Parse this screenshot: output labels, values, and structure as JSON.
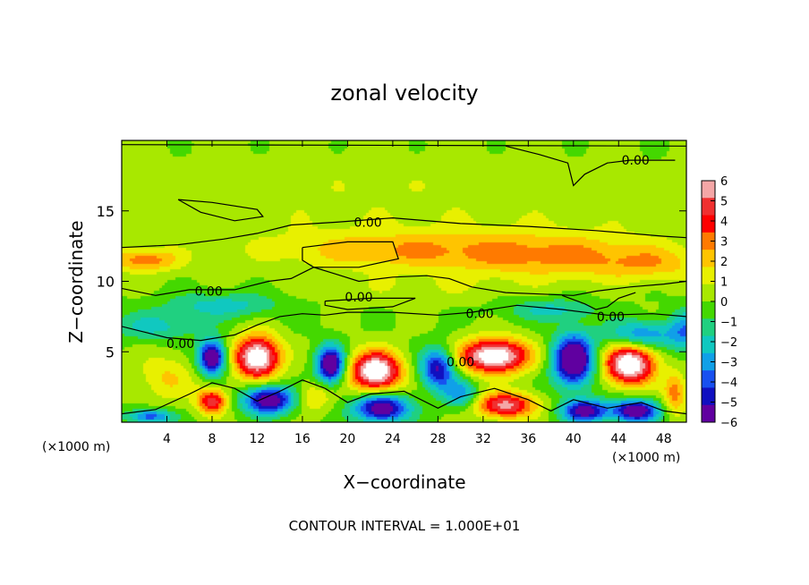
{
  "chart_data": {
    "type": "heatmap",
    "title": "zonal velocity",
    "xlabel": "X−coordinate",
    "ylabel": "Z−coordinate",
    "x_unit_left": "(×1000 m)",
    "x_unit_right": "(×1000 m)",
    "footer": "CONTOUR INTERVAL = 1.000E+01",
    "xlim": [
      0,
      50
    ],
    "ylim": [
      0,
      20
    ],
    "x_ticks": [
      4,
      8,
      12,
      16,
      20,
      24,
      28,
      32,
      36,
      40,
      44,
      48
    ],
    "y_ticks": [
      5,
      10,
      15
    ],
    "colorbar": {
      "ticks": [
        "6",
        "5",
        "4",
        "3",
        "2",
        "1",
        "0",
        "−1",
        "−2",
        "−3",
        "−4",
        "−5",
        "−6"
      ],
      "range": [
        -6,
        6
      ],
      "colors": [
        "#f4a6a6",
        "#f03030",
        "#ff0000",
        "#ff7a00",
        "#ffc400",
        "#e8f000",
        "#a8e800",
        "#44d800",
        "#20d080",
        "#10c8c0",
        "#10a0e8",
        "#1850f0",
        "#1010c0",
        "#6000a0"
      ]
    },
    "contour_labels": [
      {
        "text": "0.00",
        "x": 45.5,
        "z": 18.6
      },
      {
        "text": "0.00",
        "x": 21.8,
        "z": 14.2
      },
      {
        "text": "0.00",
        "x": 7.7,
        "z": 9.3
      },
      {
        "text": "0.00",
        "x": 21.0,
        "z": 8.9
      },
      {
        "text": "0.00",
        "x": 31.7,
        "z": 7.7
      },
      {
        "text": "0.00",
        "x": 43.3,
        "z": 7.5
      },
      {
        "text": "0.00",
        "x": 5.2,
        "z": 5.6
      },
      {
        "text": "0.00",
        "x": 30.0,
        "z": 4.3
      }
    ],
    "blobs": [
      {
        "x": 25,
        "z": 14.5,
        "v": 0.6,
        "sx": 30,
        "sz": 4
      },
      {
        "x": 20,
        "z": 17.5,
        "v": 0.2,
        "sx": 30,
        "sz": 2.5
      },
      {
        "x": 38,
        "z": 11.8,
        "v": 2.4,
        "sx": 9,
        "sz": 1.6
      },
      {
        "x": 24,
        "z": 12.2,
        "v": 2.0,
        "sx": 10,
        "sz": 1.3
      },
      {
        "x": 2,
        "z": 11.5,
        "v": 3.0,
        "sx": 3,
        "sz": 0.8
      },
      {
        "x": 47,
        "z": 11.2,
        "v": 1.6,
        "sx": 5,
        "sz": 1.2
      },
      {
        "x": 9,
        "z": 8.3,
        "v": -2.2,
        "sx": 5,
        "sz": 0.9
      },
      {
        "x": 3,
        "z": 6.8,
        "v": -2.0,
        "sx": 4,
        "sz": 1.0
      },
      {
        "x": 38,
        "z": 8.0,
        "v": -2.0,
        "sx": 4,
        "sz": 0.8
      },
      {
        "x": 46,
        "z": 6.2,
        "v": -3.5,
        "sx": 3,
        "sz": 1.0
      },
      {
        "x": 26,
        "z": 9.5,
        "v": 0.6,
        "sx": 8,
        "sz": 1.0
      },
      {
        "x": 4,
        "z": 3.2,
        "v": 1.8,
        "sx": 2.5,
        "sz": 1.6
      },
      {
        "x": 12,
        "z": 4.6,
        "v": 7.5,
        "sx": 2.0,
        "sz": 1.5
      },
      {
        "x": 22.5,
        "z": 3.6,
        "v": 7.5,
        "sx": 2.2,
        "sz": 1.4
      },
      {
        "x": 33,
        "z": 4.7,
        "v": 7.5,
        "sx": 3.0,
        "sz": 1.2
      },
      {
        "x": 45,
        "z": 4.1,
        "v": 7.5,
        "sx": 2.2,
        "sz": 1.4
      },
      {
        "x": 8,
        "z": 4.6,
        "v": -7.0,
        "sx": 1.2,
        "sz": 1.2
      },
      {
        "x": 18.5,
        "z": 4.1,
        "v": -7.0,
        "sx": 1.2,
        "sz": 1.3
      },
      {
        "x": 28,
        "z": 3.8,
        "v": -5.5,
        "sx": 1.5,
        "sz": 1.4
      },
      {
        "x": 40,
        "z": 4.4,
        "v": -7.5,
        "sx": 1.8,
        "sz": 1.8
      },
      {
        "x": 8,
        "z": 1.5,
        "v": 5.0,
        "sx": 1.3,
        "sz": 0.9
      },
      {
        "x": 13,
        "z": 1.6,
        "v": -6.5,
        "sx": 2.2,
        "sz": 1.0
      },
      {
        "x": 23,
        "z": 1.0,
        "v": -6.5,
        "sx": 2.4,
        "sz": 1.0
      },
      {
        "x": 34,
        "z": 1.2,
        "v": 5.5,
        "sx": 2.6,
        "sz": 0.9
      },
      {
        "x": 41,
        "z": 0.8,
        "v": -6.0,
        "sx": 2.0,
        "sz": 0.8
      },
      {
        "x": 45.5,
        "z": 0.8,
        "v": -6.5,
        "sx": 2.0,
        "sz": 0.8
      },
      {
        "x": 2.5,
        "z": 0.4,
        "v": -4.0,
        "sx": 2.0,
        "sz": 0.5
      },
      {
        "x": 17,
        "z": 1.8,
        "v": 2.0,
        "sx": 1.5,
        "sz": 1.0
      },
      {
        "x": 30,
        "z": 2.0,
        "v": -3.0,
        "sx": 1.5,
        "sz": 1.0
      },
      {
        "x": 49,
        "z": 2.0,
        "v": 3.0,
        "sx": 1.0,
        "sz": 1.5
      },
      {
        "x": 50,
        "z": 6.5,
        "v": -3.0,
        "sx": 1.5,
        "sz": 1.5
      }
    ],
    "contour_lines": [
      [
        [
          0,
          19.7
        ],
        [
          50,
          19.6
        ]
      ],
      [
        [
          34,
          19.6
        ],
        [
          37,
          19.0
        ],
        [
          39.5,
          18.4
        ],
        [
          40,
          16.8
        ],
        [
          41,
          17.6
        ],
        [
          43,
          18.4
        ],
        [
          45,
          18.6
        ],
        [
          49,
          18.6
        ]
      ],
      [
        [
          5,
          15.8
        ],
        [
          8,
          15.6
        ],
        [
          12,
          15.1
        ],
        [
          12.5,
          14.6
        ],
        [
          10,
          14.3
        ],
        [
          7,
          14.9
        ],
        [
          5,
          15.8
        ]
      ],
      [
        [
          0,
          12.4
        ],
        [
          5,
          12.6
        ],
        [
          9,
          13.0
        ],
        [
          12,
          13.4
        ],
        [
          15,
          14.0
        ],
        [
          19,
          14.2
        ],
        [
          24,
          14.5
        ],
        [
          30,
          14.1
        ],
        [
          36,
          13.9
        ],
        [
          42,
          13.6
        ],
        [
          48,
          13.2
        ],
        [
          50,
          13.1
        ]
      ],
      [
        [
          16,
          12.4
        ],
        [
          20,
          12.8
        ],
        [
          24,
          12.8
        ],
        [
          24.5,
          11.6
        ],
        [
          21,
          11.0
        ],
        [
          17,
          11.0
        ],
        [
          16,
          11.5
        ],
        [
          16,
          12.4
        ]
      ],
      [
        [
          0,
          9.5
        ],
        [
          3,
          9.0
        ],
        [
          6,
          9.4
        ],
        [
          10,
          9.4
        ],
        [
          13,
          10.0
        ],
        [
          15,
          10.2
        ],
        [
          17,
          11.0
        ],
        [
          19,
          10.5
        ],
        [
          21,
          10.0
        ],
        [
          24,
          10.3
        ],
        [
          27,
          10.4
        ],
        [
          29,
          10.2
        ],
        [
          31,
          9.6
        ],
        [
          34,
          9.2
        ],
        [
          37,
          9.1
        ],
        [
          40,
          9.0
        ],
        [
          42,
          9.3
        ],
        [
          45,
          9.6
        ],
        [
          48,
          9.8
        ],
        [
          50,
          10.0
        ]
      ],
      [
        [
          18,
          8.6
        ],
        [
          22,
          8.8
        ],
        [
          26,
          8.8
        ],
        [
          24,
          8.2
        ],
        [
          20,
          8.0
        ],
        [
          18,
          8.3
        ],
        [
          18,
          8.6
        ]
      ],
      [
        [
          0,
          6.8
        ],
        [
          2,
          6.4
        ],
        [
          4,
          6.0
        ],
        [
          7,
          5.8
        ],
        [
          10,
          6.2
        ],
        [
          12,
          6.9
        ],
        [
          14,
          7.5
        ],
        [
          16,
          7.7
        ],
        [
          18,
          7.6
        ],
        [
          20,
          7.8
        ],
        [
          24,
          7.8
        ],
        [
          28,
          7.6
        ],
        [
          31,
          7.8
        ],
        [
          35,
          8.3
        ],
        [
          39,
          8.0
        ],
        [
          43,
          7.6
        ],
        [
          47,
          7.7
        ],
        [
          50,
          7.5
        ]
      ],
      [
        [
          39,
          9.0
        ],
        [
          41,
          8.4
        ],
        [
          42,
          8.0
        ],
        [
          43,
          8.2
        ],
        [
          44,
          8.8
        ],
        [
          45.5,
          9.2
        ]
      ],
      [
        [
          0,
          0.6
        ],
        [
          3,
          0.9
        ],
        [
          6,
          2.0
        ],
        [
          8,
          2.8
        ],
        [
          10,
          2.4
        ],
        [
          12,
          1.5
        ],
        [
          14,
          2.2
        ],
        [
          16,
          3.0
        ],
        [
          18,
          2.4
        ],
        [
          20,
          1.4
        ],
        [
          22,
          2.0
        ],
        [
          25,
          2.2
        ],
        [
          28,
          1.0
        ],
        [
          30,
          1.8
        ],
        [
          33,
          2.4
        ],
        [
          36,
          1.6
        ],
        [
          38,
          0.8
        ],
        [
          40,
          1.6
        ],
        [
          43,
          1.0
        ],
        [
          46,
          1.4
        ],
        [
          48,
          0.8
        ],
        [
          50,
          0.6
        ]
      ]
    ]
  }
}
